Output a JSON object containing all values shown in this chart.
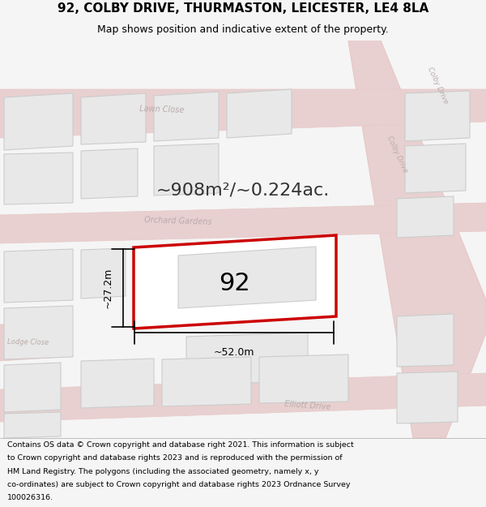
{
  "title_line1": "92, COLBY DRIVE, THURMASTON, LEICESTER, LE4 8LA",
  "title_line2": "Map shows position and indicative extent of the property.",
  "area_text": "~908m²/~0.224ac.",
  "property_number": "92",
  "dim_width": "~52.0m",
  "dim_height": "~27.2m",
  "footer_lines": [
    "Contains OS data © Crown copyright and database right 2021. This information is subject",
    "to Crown copyright and database rights 2023 and is reproduced with the permission of",
    "HM Land Registry. The polygons (including the associated geometry, namely x, y",
    "co-ordinates) are subject to Crown copyright and database rights 2023 Ordnance Survey",
    "100026316."
  ],
  "bg_color": "#f5f5f5",
  "map_bg": "#f0eeee",
  "road_color": "#e8c8c8",
  "road_fill": "#e8d0d0",
  "building_fill": "#e8e8e8",
  "building_stroke": "#cccccc",
  "property_fill": "white",
  "property_stroke": "#cc0000",
  "road_label_color": "#bbaaaa",
  "dim_color": "black",
  "area_text_color": "#333333",
  "footer_bg": "white"
}
